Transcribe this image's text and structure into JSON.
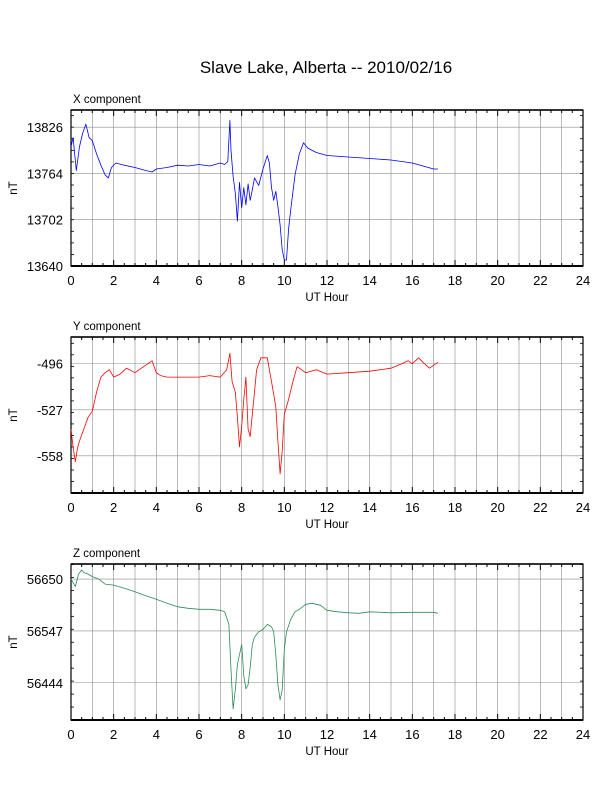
{
  "title": "Slave Lake, Alberta -- 2010/02/16",
  "chart_data": [
    {
      "type": "line",
      "panel_label": "X component",
      "xlabel": "UT Hour",
      "ylabel": "nT",
      "xlim": [
        0,
        24
      ],
      "ylim": [
        13640,
        13849
      ],
      "xticks": [
        0,
        2,
        4,
        6,
        8,
        10,
        12,
        14,
        16,
        18,
        20,
        22,
        24
      ],
      "yticks": [
        13640,
        13702,
        13764,
        13826
      ],
      "grid": true,
      "color": "#0000ff",
      "series": [
        {
          "x": [
            0.0,
            0.1,
            0.25,
            0.4,
            0.55,
            0.7,
            0.85,
            1.0,
            1.2,
            1.4,
            1.6,
            1.75,
            1.9,
            2.1,
            2.5,
            3.0,
            3.5,
            3.8,
            4.0,
            4.5,
            5.0,
            5.5,
            6.0,
            6.5,
            7.0,
            7.2,
            7.35,
            7.45,
            7.5,
            7.6,
            7.7,
            7.8,
            7.9,
            8.0,
            8.1,
            8.2,
            8.3,
            8.4,
            8.5,
            8.6,
            8.8,
            9.0,
            9.2,
            9.3,
            9.4,
            9.5,
            9.6,
            9.7,
            9.8,
            9.9,
            10.0,
            10.1,
            10.2,
            10.3,
            10.5,
            10.7,
            10.9,
            11.1,
            11.5,
            12.0,
            13.0,
            14.0,
            15.0,
            16.0,
            16.5,
            17.0,
            17.2
          ],
          "y": [
            13800,
            13812,
            13768,
            13800,
            13818,
            13830,
            13812,
            13808,
            13790,
            13775,
            13762,
            13758,
            13772,
            13778,
            13775,
            13772,
            13768,
            13766,
            13770,
            13772,
            13775,
            13774,
            13776,
            13774,
            13778,
            13776,
            13780,
            13835,
            13795,
            13760,
            13738,
            13700,
            13752,
            13718,
            13745,
            13722,
            13750,
            13728,
            13742,
            13758,
            13748,
            13770,
            13788,
            13778,
            13745,
            13728,
            13740,
            13720,
            13695,
            13662,
            13648,
            13648,
            13690,
            13715,
            13762,
            13790,
            13805,
            13798,
            13792,
            13788,
            13786,
            13784,
            13782,
            13778,
            13774,
            13770,
            13770
          ]
        }
      ]
    },
    {
      "type": "line",
      "panel_label": "Y component",
      "xlabel": "UT Hour",
      "ylabel": "nT",
      "xlim": [
        0,
        24
      ],
      "ylim": [
        -583,
        -478
      ],
      "xticks": [
        0,
        2,
        4,
        6,
        8,
        10,
        12,
        14,
        16,
        18,
        20,
        22,
        24
      ],
      "yticks": [
        -496,
        -527,
        -558
      ],
      "grid": true,
      "color": "#ff0000",
      "series": [
        {
          "x": [
            0.0,
            0.1,
            0.2,
            0.3,
            0.4,
            0.6,
            0.8,
            1.0,
            1.2,
            1.4,
            1.6,
            1.8,
            2.0,
            2.3,
            2.6,
            3.0,
            3.3,
            3.6,
            3.8,
            4.0,
            4.2,
            4.5,
            5.0,
            5.5,
            6.0,
            6.5,
            7.0,
            7.3,
            7.45,
            7.55,
            7.7,
            7.8,
            7.9,
            8.0,
            8.1,
            8.2,
            8.3,
            8.4,
            8.5,
            8.6,
            8.7,
            8.8,
            8.9,
            9.0,
            9.2,
            9.4,
            9.6,
            9.7,
            9.8,
            9.9,
            10.0,
            10.2,
            10.4,
            10.6,
            10.8,
            11.0,
            11.5,
            12.0,
            13.0,
            14.0,
            14.5,
            15.0,
            15.5,
            15.8,
            16.0,
            16.3,
            16.5,
            16.8,
            17.0,
            17.2
          ],
          "y": [
            -540,
            -552,
            -562,
            -553,
            -548,
            -540,
            -532,
            -528,
            -515,
            -505,
            -502,
            -500,
            -505,
            -503,
            -499,
            -502,
            -499,
            -496,
            -494,
            -502,
            -504,
            -505,
            -505,
            -505,
            -505,
            -504,
            -505,
            -500,
            -489,
            -508,
            -515,
            -532,
            -552,
            -538,
            -520,
            -505,
            -540,
            -545,
            -530,
            -515,
            -500,
            -496,
            -492,
            -492,
            -492,
            -508,
            -525,
            -548,
            -570,
            -555,
            -530,
            -520,
            -508,
            -498,
            -500,
            -502,
            -500,
            -503,
            -502,
            -501,
            -500,
            -499,
            -496,
            -494,
            -496,
            -492,
            -495,
            -499,
            -497,
            -495
          ]
        }
      ]
    },
    {
      "type": "line",
      "panel_label": "Z component",
      "xlabel": "UT Hour",
      "ylabel": "nT",
      "xlim": [
        0,
        24
      ],
      "ylim": [
        56370,
        56680
      ],
      "xticks": [
        0,
        2,
        4,
        6,
        8,
        10,
        12,
        14,
        16,
        18,
        20,
        22,
        24
      ],
      "yticks": [
        56444,
        56547,
        56650
      ],
      "grid": true,
      "color": "#2e8b57",
      "series": [
        {
          "x": [
            0.0,
            0.2,
            0.35,
            0.5,
            0.6,
            0.8,
            1.0,
            1.3,
            1.6,
            2.0,
            2.5,
            3.0,
            3.5,
            4.0,
            4.5,
            5.0,
            5.5,
            6.0,
            6.5,
            7.0,
            7.2,
            7.4,
            7.5,
            7.6,
            7.7,
            7.8,
            7.9,
            8.0,
            8.1,
            8.2,
            8.3,
            8.4,
            8.5,
            8.6,
            8.8,
            9.0,
            9.2,
            9.4,
            9.5,
            9.6,
            9.7,
            9.8,
            9.9,
            10.0,
            10.1,
            10.3,
            10.5,
            10.7,
            11.0,
            11.3,
            11.7,
            12.0,
            12.5,
            13.0,
            13.5,
            14.0,
            15.0,
            16.0,
            16.5,
            17.0,
            17.2
          ],
          "y": [
            56650,
            56635,
            56660,
            56668,
            56663,
            56660,
            56655,
            56650,
            56640,
            56638,
            56632,
            56625,
            56617,
            56610,
            56602,
            56595,
            56592,
            56590,
            56590,
            56588,
            56585,
            56560,
            56470,
            56392,
            56430,
            56480,
            56500,
            56520,
            56458,
            56432,
            56440,
            56475,
            56520,
            56535,
            56545,
            56550,
            56560,
            56555,
            56545,
            56500,
            56440,
            56410,
            56430,
            56510,
            56545,
            56570,
            56585,
            56590,
            56600,
            56602,
            56598,
            56588,
            56585,
            56583,
            56582,
            56585,
            56583,
            56584,
            56584,
            56584,
            56582
          ]
        }
      ]
    }
  ]
}
